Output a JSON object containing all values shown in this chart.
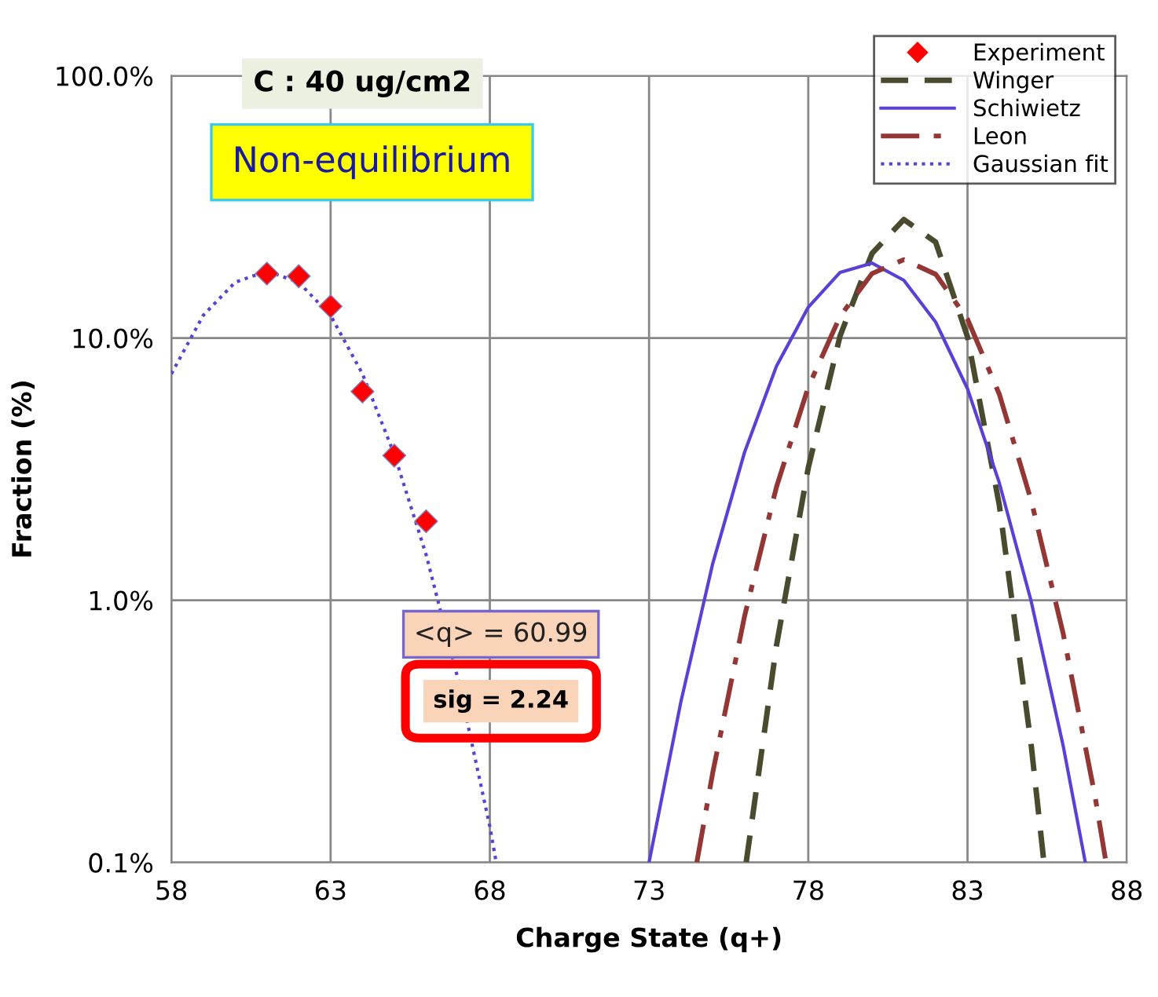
{
  "chart_data": {
    "type": "line",
    "xlabel": "Charge State (q+)",
    "ylabel": "Fraction (%)",
    "log": "y",
    "xlim": [
      58,
      88
    ],
    "xticks": [
      58,
      63,
      68,
      73,
      78,
      83,
      88
    ],
    "ylim": [
      0.1,
      100
    ],
    "yticks": [
      {
        "value": 0.1,
        "label": "0.1%"
      },
      {
        "value": 1,
        "label": "1.0%"
      },
      {
        "value": 10,
        "label": "10.0%"
      },
      {
        "value": 100,
        "label": "100.0%"
      }
    ],
    "grid": true,
    "legend": "top right",
    "series": [
      {
        "name": "Experiment",
        "type": "scatter",
        "marker": "diamond",
        "color": "#ff0000",
        "x": [
          61,
          62,
          63,
          64,
          65,
          66
        ],
        "values": [
          17.6,
          17.2,
          13.2,
          6.25,
          3.56,
          2.0
        ]
      },
      {
        "name": "Winger",
        "line_style": "dashed",
        "color": "#4a4a2e",
        "x": [
          76.05,
          77,
          78,
          79,
          80,
          81,
          82,
          83,
          84,
          85,
          85.4
        ],
        "values": [
          0.1,
          0.67,
          3.2,
          10.2,
          21,
          28.3,
          23.2,
          10.1,
          2.3,
          0.28,
          0.1
        ]
      },
      {
        "name": "Schiwietz",
        "line_style": "solid",
        "color": "#5b3fd6",
        "x": [
          73,
          74,
          75,
          76,
          77,
          78,
          79,
          80,
          81,
          82,
          83,
          84,
          85,
          86,
          86.7
        ],
        "values": [
          0.1,
          0.41,
          1.38,
          3.67,
          7.8,
          13.1,
          17.8,
          19.3,
          16.6,
          11.5,
          6.4,
          2.8,
          0.99,
          0.28,
          0.1
        ]
      },
      {
        "name": "Leon",
        "line_style": "dashdot",
        "color": "#943634",
        "x": [
          74.5,
          75,
          76,
          77,
          78,
          79,
          80,
          81,
          82,
          83,
          84,
          85,
          86,
          87,
          87.35
        ],
        "values": [
          0.1,
          0.22,
          0.87,
          2.7,
          6.5,
          12.1,
          17.6,
          19.9,
          17.5,
          11.8,
          6.1,
          2.4,
          0.75,
          0.18,
          0.1
        ]
      },
      {
        "name": "Gaussian fit",
        "line_style": "dotted",
        "color": "#5b3fd6",
        "x": [
          58,
          59,
          60,
          61,
          62,
          63,
          64,
          65,
          66,
          67,
          68,
          68.2
        ],
        "values": [
          7.3,
          12.2,
          16.3,
          18,
          16.3,
          12.2,
          7.3,
          3.6,
          1.49,
          0.5,
          0.137,
          0.1
        ]
      }
    ],
    "annotations": [
      "C : 40 ug/cm2",
      "Non-equilibrium",
      "<q> = 60.99",
      "sig = 2.24"
    ]
  }
}
